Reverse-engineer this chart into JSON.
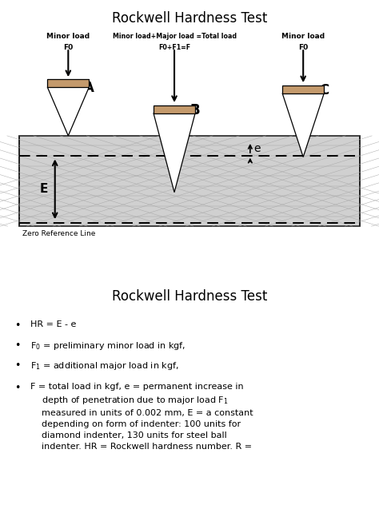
{
  "title": "Rockwell Hardness Test",
  "title2": "Rockwell Hardness Test",
  "diagram_bg": "#eeeeee",
  "panel_bg": "#d0d0d0",
  "indenter_top_color": "#c49a6c",
  "mesh_color": "#aaaaaa",
  "mesh_lw": 0.35,
  "label_A_line1": "Minor load",
  "label_A_line2": "F0",
  "label_B_line1": "Minor load+Major load =Total load",
  "label_B_line2": "F0+F1=F",
  "label_C_line1": "Minor load",
  "label_C_line2": "F0",
  "letter_A": "A",
  "letter_B": "B",
  "letter_C": "C",
  "letter_E": "E",
  "letter_e": "e",
  "zero_ref_label": "Zero Reference Line",
  "bullet1": "HR = E - e",
  "bullet2": "F$_0$ = preliminary minor load in kgf,",
  "bullet3": "F$_1$ = additional major load in kgf,",
  "bullet4": "F = total load in kgf, e = permanent increase in\n    depth of penetration due to major load F$_1$\n    measured in units of 0.002 mm, E = a constant\n    depending on form of indenter: 100 units for\n    diamond indenter, 130 units for steel ball\n    indenter. HR = Rockwell hardness number. R ="
}
